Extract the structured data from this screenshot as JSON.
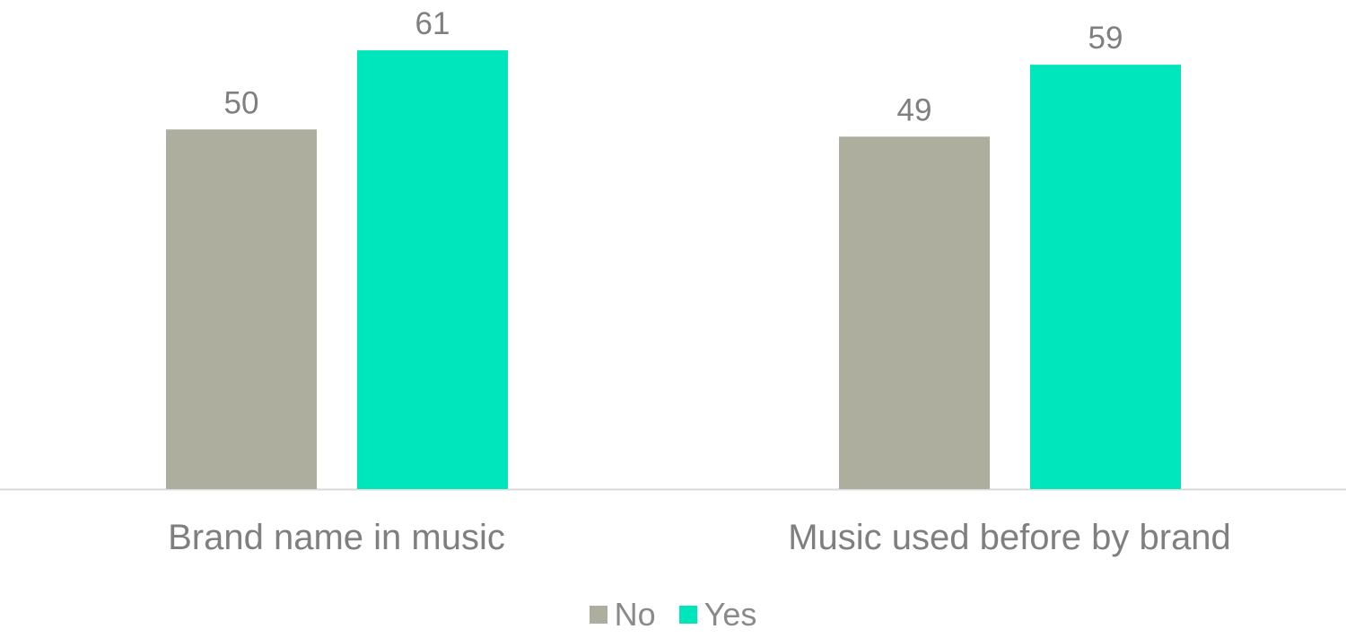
{
  "chart_data": {
    "type": "bar",
    "categories": [
      "Brand name in music",
      "Music used before by brand"
    ],
    "series": [
      {
        "name": "No",
        "values": [
          50,
          49
        ],
        "color": "#ADAE9E"
      },
      {
        "name": "Yes",
        "values": [
          61,
          59
        ],
        "color": "#00E6BC"
      }
    ],
    "title": "",
    "xlabel": "",
    "ylabel": "",
    "ylim": [
      0,
      68
    ],
    "grid": false,
    "legend": "bottom",
    "data_labels": true
  }
}
